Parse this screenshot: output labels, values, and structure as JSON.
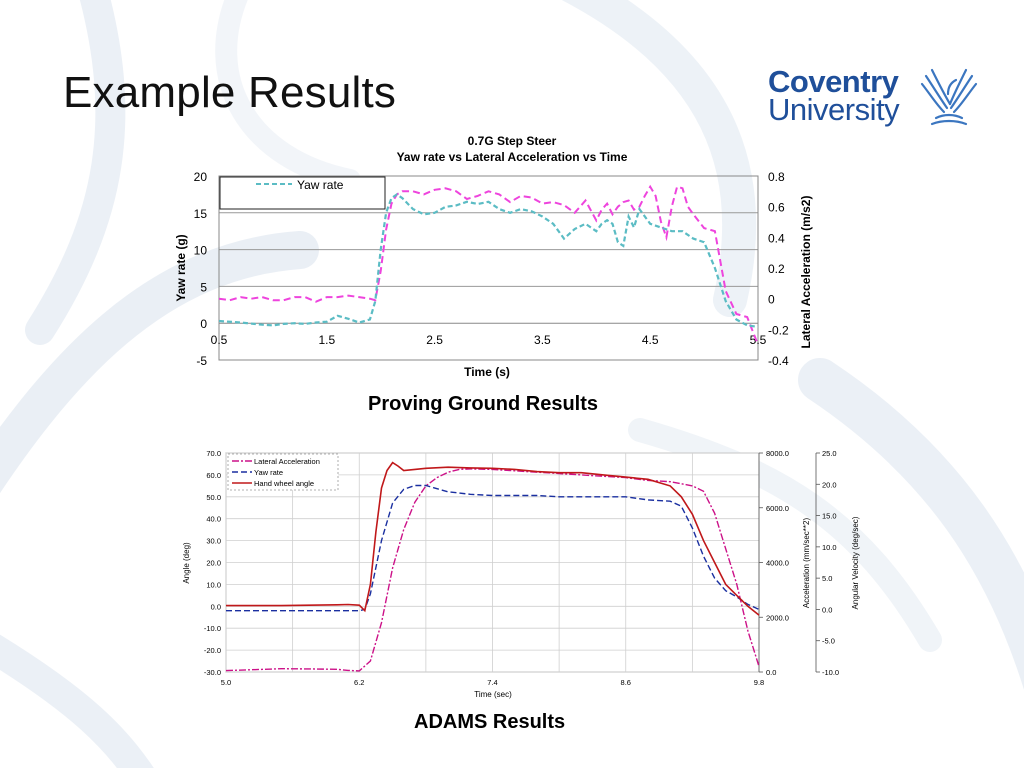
{
  "slide": {
    "title": "Example Results"
  },
  "logo": {
    "line1": "Coventry",
    "line2": "University",
    "brand_color": "#1f4f9a"
  },
  "captions": {
    "proving_ground": "Proving Ground Results",
    "adams": "ADAMS Results"
  },
  "colors": {
    "background_swirl": "#dde6ef",
    "yaw_rate_1": "#5bbcc4",
    "lat_acc_1": "#ee44dd",
    "lat_acc_2": "#cc1188",
    "yaw_rate_2": "#1a2fa0",
    "hand_wheel_2": "#c0181a"
  },
  "chart_data": [
    {
      "type": "line",
      "title": "0.7G Step Steer",
      "subtitle": "Yaw rate vs Lateral Acceleration vs Time",
      "xlabel": "Time (s)",
      "ylabel": "Yaw rate (g)",
      "y2label": "Lateral Acceleration (m/s2)",
      "xlim": [
        0.5,
        5.5
      ],
      "ylim": [
        -5,
        20
      ],
      "y2lim": [
        -0.4,
        0.8
      ],
      "xticks": [
        "0.5",
        "1.5",
        "2.5",
        "3.5",
        "4.5",
        "5.5"
      ],
      "yticks": [
        "-5",
        "0",
        "5",
        "10",
        "15",
        "20"
      ],
      "y2ticks": [
        "-0.4",
        "-0.2",
        "0",
        "0.2",
        "0.4",
        "0.6",
        "0.8"
      ],
      "grid": "horizontal",
      "legend": [
        "Yaw rate"
      ],
      "legend_position": "top-left",
      "series": [
        {
          "name": "Yaw rate",
          "axis": "left",
          "style": "dashed",
          "x": [
            0.5,
            0.7,
            0.9,
            1.0,
            1.1,
            1.2,
            1.3,
            1.4,
            1.5,
            1.6,
            1.7,
            1.8,
            1.9,
            1.95,
            2.0,
            2.05,
            2.1,
            2.15,
            2.2,
            2.3,
            2.4,
            2.5,
            2.6,
            2.7,
            2.8,
            2.9,
            3.0,
            3.1,
            3.2,
            3.3,
            3.4,
            3.5,
            3.6,
            3.7,
            3.8,
            3.9,
            4.0,
            4.05,
            4.1,
            4.15,
            4.2,
            4.25,
            4.3,
            4.35,
            4.4,
            4.5,
            4.6,
            4.7,
            4.8,
            4.9,
            5.0,
            5.1,
            5.2,
            5.3,
            5.4,
            5.5
          ],
          "y": [
            0.3,
            0.1,
            -0.2,
            -0.3,
            -0.1,
            0.0,
            -0.1,
            0.1,
            0.2,
            1.0,
            0.6,
            0.1,
            0.5,
            3.0,
            10.0,
            15.0,
            17.0,
            17.5,
            17.0,
            15.5,
            14.8,
            15.0,
            15.8,
            16.0,
            16.5,
            16.2,
            16.5,
            15.5,
            15.0,
            15.5,
            15.2,
            14.5,
            13.5,
            11.5,
            12.8,
            13.5,
            12.5,
            13.5,
            14.0,
            13.5,
            11.0,
            10.5,
            14.5,
            13.0,
            15.5,
            13.5,
            13.0,
            12.5,
            12.5,
            11.5,
            11.0,
            7.5,
            3.0,
            0.5,
            -0.3,
            -0.5
          ]
        },
        {
          "name": "Lateral Acceleration",
          "axis": "right",
          "style": "dashed",
          "x": [
            0.5,
            0.6,
            0.7,
            0.8,
            0.9,
            1.0,
            1.1,
            1.2,
            1.3,
            1.4,
            1.5,
            1.6,
            1.7,
            1.8,
            1.9,
            1.95,
            2.0,
            2.05,
            2.1,
            2.15,
            2.2,
            2.3,
            2.4,
            2.5,
            2.6,
            2.7,
            2.8,
            2.9,
            3.0,
            3.1,
            3.2,
            3.3,
            3.4,
            3.5,
            3.6,
            3.7,
            3.8,
            3.9,
            4.0,
            4.05,
            4.1,
            4.15,
            4.2,
            4.25,
            4.3,
            4.35,
            4.4,
            4.45,
            4.5,
            4.55,
            4.6,
            4.65,
            4.7,
            4.75,
            4.8,
            4.85,
            4.9,
            5.0,
            5.1,
            5.2,
            5.3,
            5.4,
            5.5
          ],
          "y": [
            0.0,
            -0.01,
            0.01,
            0.0,
            0.01,
            -0.01,
            -0.01,
            0.01,
            0.01,
            -0.02,
            0.01,
            0.01,
            0.02,
            0.01,
            0.0,
            -0.01,
            0.18,
            0.45,
            0.62,
            0.68,
            0.7,
            0.7,
            0.68,
            0.71,
            0.72,
            0.7,
            0.65,
            0.67,
            0.7,
            0.68,
            0.63,
            0.67,
            0.66,
            0.62,
            0.63,
            0.61,
            0.56,
            0.64,
            0.51,
            0.58,
            0.62,
            0.55,
            0.6,
            0.63,
            0.64,
            0.58,
            0.6,
            0.67,
            0.73,
            0.67,
            0.5,
            0.4,
            0.6,
            0.73,
            0.72,
            0.6,
            0.55,
            0.46,
            0.44,
            0.05,
            -0.1,
            -0.12,
            -0.3
          ]
        }
      ]
    },
    {
      "type": "line",
      "title": "",
      "xlabel": "Time (sec)",
      "ylabel": "Angle (deg)",
      "y2label": "Acceleration (mm/sec**2)",
      "y3label": "Angular Velocity (deg/sec)",
      "xlim": [
        5.0,
        9.8
      ],
      "ylim": [
        -30.0,
        70.0
      ],
      "y2lim": [
        0.0,
        8000.0
      ],
      "y3lim": [
        -10.0,
        25.0
      ],
      "xticks": [
        "5.0",
        "6.2",
        "7.4",
        "8.6",
        "9.8"
      ],
      "yticks": [
        "-30.0",
        "-20.0",
        "-10.0",
        "0.0",
        "10.0",
        "20.0",
        "30.0",
        "40.0",
        "50.0",
        "60.0",
        "70.0"
      ],
      "y2ticks": [
        "0.0",
        "2000.0",
        "4000.0",
        "6000.0",
        "8000.0"
      ],
      "y3ticks": [
        "-10.0",
        "-5.0",
        "0.0",
        "5.0",
        "10.0",
        "15.0",
        "20.0",
        "25.0"
      ],
      "grid": "both",
      "legend": [
        "Lateral Acceleration",
        "Yaw rate",
        "Hand wheel angle"
      ],
      "legend_position": "top-left",
      "series": [
        {
          "name": "Lateral Acceleration",
          "axis": "y2",
          "style": "dash-dot",
          "x": [
            5.0,
            5.5,
            5.8,
            6.0,
            6.1,
            6.2,
            6.3,
            6.4,
            6.5,
            6.6,
            6.7,
            6.8,
            6.9,
            7.0,
            7.1,
            7.2,
            7.4,
            7.6,
            7.8,
            8.0,
            8.2,
            8.4,
            8.6,
            8.8,
            9.0,
            9.2,
            9.3,
            9.4,
            9.5,
            9.6,
            9.7,
            9.8
          ],
          "y": [
            50,
            120,
            110,
            100,
            60,
            40,
            400,
            1800,
            3800,
            5200,
            6200,
            6800,
            7100,
            7300,
            7400,
            7420,
            7400,
            7350,
            7300,
            7250,
            7200,
            7150,
            7100,
            7000,
            6950,
            6800,
            6600,
            5800,
            4500,
            3200,
            1500,
            200
          ]
        },
        {
          "name": "Yaw rate",
          "axis": "y3",
          "style": "dashed",
          "x": [
            5.0,
            5.5,
            6.0,
            6.2,
            6.25,
            6.3,
            6.4,
            6.5,
            6.6,
            6.7,
            6.8,
            6.9,
            7.0,
            7.2,
            7.4,
            7.6,
            7.8,
            8.0,
            8.2,
            8.4,
            8.6,
            8.8,
            9.0,
            9.1,
            9.2,
            9.3,
            9.4,
            9.5,
            9.6,
            9.7,
            9.8
          ],
          "y": [
            -0.2,
            -0.2,
            -0.2,
            -0.2,
            0.0,
            2.5,
            11.0,
            17.0,
            19.2,
            19.8,
            19.8,
            19.3,
            18.8,
            18.4,
            18.2,
            18.2,
            18.2,
            18.0,
            18.0,
            18.0,
            18.0,
            17.5,
            17.3,
            16.5,
            13.0,
            8.5,
            5.0,
            3.0,
            2.0,
            0.8,
            0.0
          ]
        },
        {
          "name": "Hand wheel angle",
          "axis": "left",
          "style": "solid",
          "x": [
            5.0,
            5.5,
            6.0,
            6.1,
            6.2,
            6.25,
            6.3,
            6.35,
            6.4,
            6.45,
            6.5,
            6.55,
            6.6,
            6.7,
            6.8,
            7.0,
            7.2,
            7.4,
            7.6,
            7.8,
            8.0,
            8.2,
            8.4,
            8.6,
            8.8,
            9.0,
            9.1,
            9.2,
            9.3,
            9.4,
            9.5,
            9.6,
            9.7,
            9.8
          ],
          "y": [
            0.3,
            0.3,
            0.7,
            0.8,
            0.5,
            -2.0,
            10.0,
            34.0,
            54.0,
            62.0,
            65.6,
            64.0,
            62.0,
            62.5,
            63.0,
            63.5,
            63.2,
            63.0,
            62.5,
            61.5,
            61.0,
            61.0,
            60.0,
            59.0,
            58.0,
            55.0,
            50.0,
            42.0,
            30.0,
            20.0,
            10.0,
            5.0,
            0.0,
            -4.0
          ]
        }
      ]
    }
  ]
}
